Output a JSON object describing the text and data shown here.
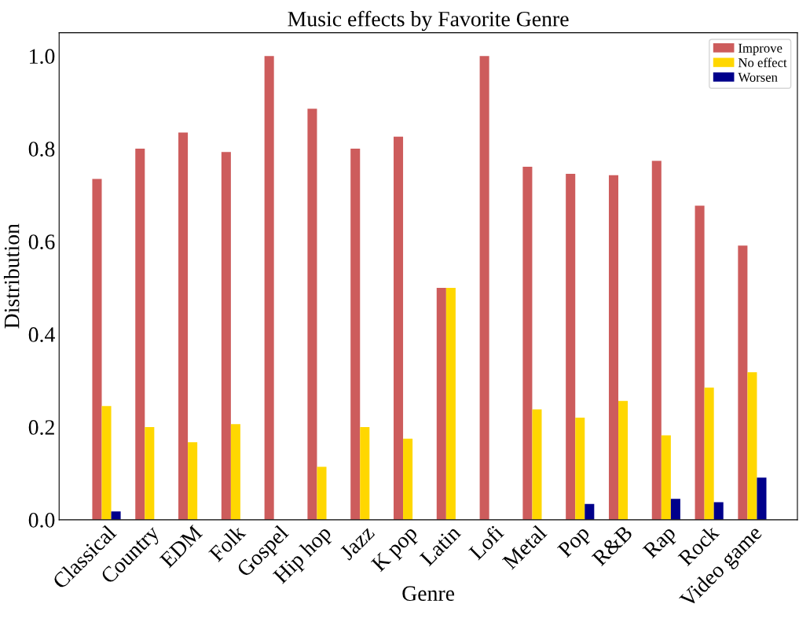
{
  "chart_data": {
    "type": "bar",
    "title": "Music effects by Favorite Genre",
    "xlabel": "Genre",
    "ylabel": "Distribution",
    "categories": [
      "Classical",
      "Country",
      "EDM",
      "Folk",
      "Gospel",
      "Hip hop",
      "Jazz",
      "K pop",
      "Latin",
      "Lofi",
      "Metal",
      "Pop",
      "R&B",
      "Rap",
      "Rock",
      "Video game"
    ],
    "series": [
      {
        "name": "Improve",
        "color": "#cd5c5c",
        "values": [
          0.735,
          0.8,
          0.835,
          0.793,
          1.0,
          0.886,
          0.8,
          0.826,
          0.5,
          1.0,
          0.761,
          0.746,
          0.743,
          0.774,
          0.677,
          0.591
        ]
      },
      {
        "name": "No effect",
        "color": "#ffd700",
        "values": [
          0.245,
          0.2,
          0.167,
          0.206,
          0,
          0.114,
          0.2,
          0.175,
          0.5,
          0,
          0.238,
          0.22,
          0.256,
          0.182,
          0.285,
          0.318
        ]
      },
      {
        "name": "Worsen",
        "color": "#00008b",
        "values": [
          0.018,
          0,
          0,
          0,
          0,
          0,
          0,
          0,
          0,
          0,
          0,
          0.034,
          0,
          0.045,
          0.038,
          0.091
        ]
      }
    ],
    "ylim": [
      0,
      1.05
    ],
    "yticks": [
      {
        "value": 0,
        "label": "0.0"
      },
      0.2,
      0.4,
      0.6,
      0.8,
      {
        "value": 1,
        "label": "1.0"
      }
    ],
    "grid": false,
    "legend": "top right"
  }
}
